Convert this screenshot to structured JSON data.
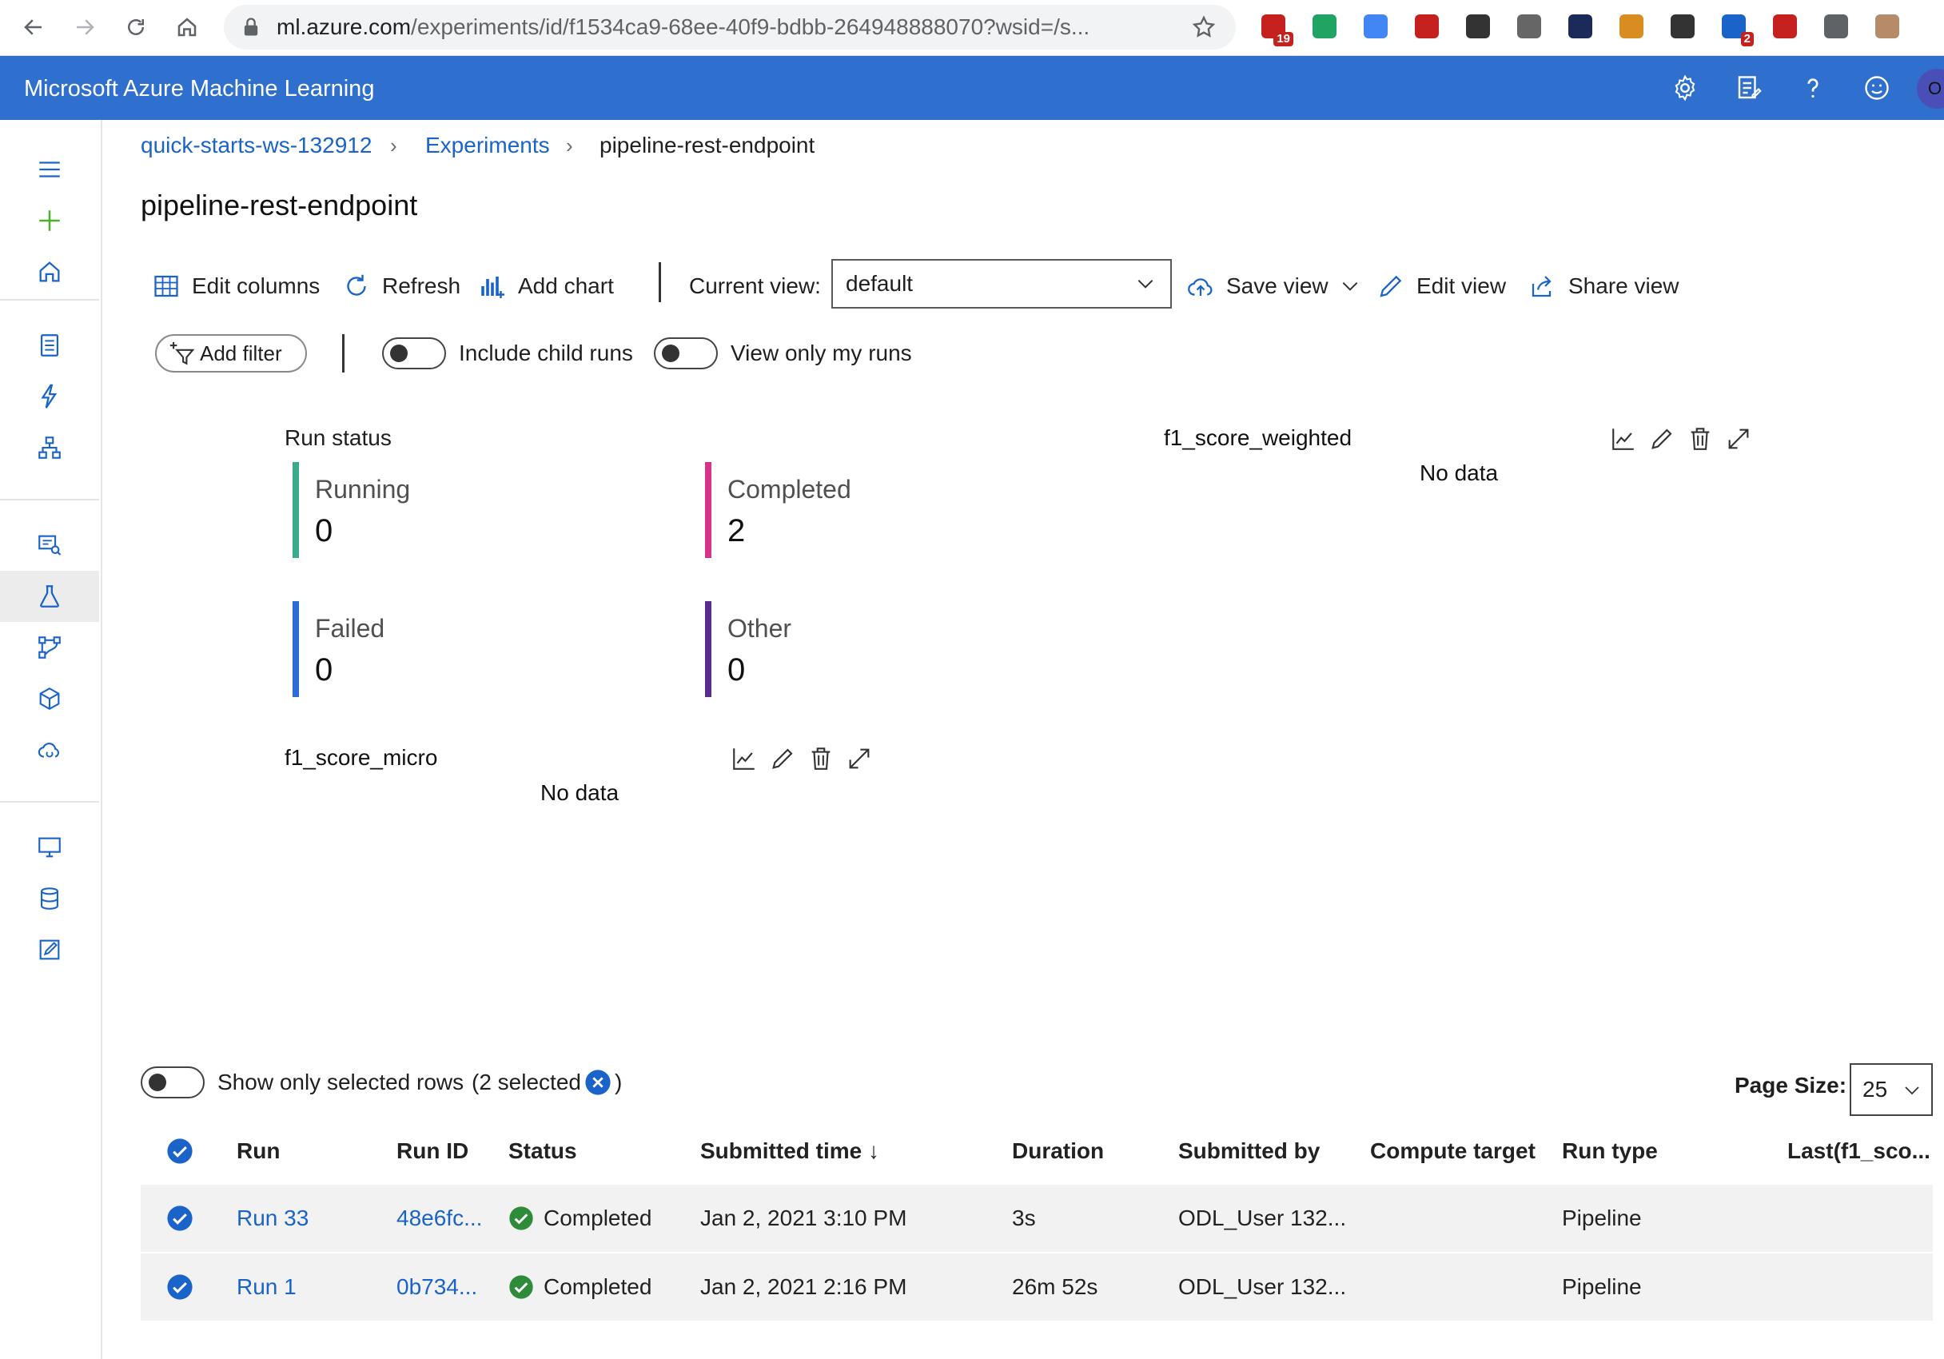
{
  "browser": {
    "url_host": "ml.azure.com",
    "url_path": "/experiments/id/f1534ca9-68ee-40f9-bdbb-264948888070?wsid=/s...",
    "extensions": [
      {
        "name": "gmail-icon",
        "badge": "19",
        "color": "#c5221f"
      },
      {
        "name": "google-drive-icon",
        "badge": "",
        "color": "#1fa463"
      },
      {
        "name": "translate-icon",
        "badge": "",
        "color": "#4285f4"
      },
      {
        "name": "bookmark-ext-icon",
        "badge": "",
        "color": "#c5221f"
      },
      {
        "name": "info-ext-icon",
        "badge": "",
        "color": "#333333"
      },
      {
        "name": "circle-ext-icon",
        "badge": "",
        "color": "#666666"
      },
      {
        "name": "ip-ext-icon",
        "badge": "",
        "color": "#1c2a5a"
      },
      {
        "name": "txt-ext-icon",
        "badge": "",
        "color": "#d98c1f"
      },
      {
        "name": "speed-ext-icon",
        "badge": "",
        "color": "#333333"
      },
      {
        "name": "drop-ext-icon",
        "badge": "2",
        "color": "#1a63c8"
      },
      {
        "name": "mendeley-ext-icon",
        "badge": "",
        "color": "#c5221f"
      },
      {
        "name": "puzzle-icon",
        "badge": "",
        "color": "#5f6368"
      },
      {
        "name": "profile-avatar-icon",
        "badge": "",
        "color": "#b58b6a"
      }
    ]
  },
  "header": {
    "title": "Microsoft Azure Machine Learning",
    "avatar_initial": "O",
    "brand_color": "#2f6fcd"
  },
  "breadcrumb": {
    "workspace": "quick-starts-ws-132912",
    "section": "Experiments",
    "current": "pipeline-rest-endpoint"
  },
  "page": {
    "title": "pipeline-rest-endpoint"
  },
  "toolbar": {
    "edit_columns": "Edit columns",
    "refresh": "Refresh",
    "add_chart": "Add chart",
    "current_view_label": "Current view:",
    "current_view_value": "default",
    "save_view": "Save view",
    "edit_view": "Edit view",
    "share_view": "Share view"
  },
  "filters": {
    "add_filter": "Add filter",
    "include_child_runs": "Include child runs",
    "include_child_runs_on": false,
    "view_only_my_runs": "View only my runs",
    "view_only_my_runs_on": false
  },
  "run_status": {
    "title": "Run status",
    "tiles": [
      {
        "label": "Running",
        "value": "0",
        "color": "#3aaa8c"
      },
      {
        "label": "Completed",
        "value": "2",
        "color": "#d6338a"
      },
      {
        "label": "Failed",
        "value": "0",
        "color": "#2b6bd6"
      },
      {
        "label": "Other",
        "value": "0",
        "color": "#5b2b91"
      }
    ]
  },
  "charts": [
    {
      "title": "f1_score_weighted",
      "empty_text": "No data"
    },
    {
      "title": "f1_score_micro",
      "empty_text": "No data"
    }
  ],
  "selection": {
    "show_only_selected": "Show only selected rows",
    "show_only_selected_on": false,
    "selected_prefix": "(2 selected",
    "selected_suffix": ")"
  },
  "pagination": {
    "label": "Page Size:",
    "value": "25"
  },
  "table": {
    "columns": [
      "Run",
      "Run ID",
      "Status",
      "Submitted time ↓",
      "Duration",
      "Submitted by",
      "Compute target",
      "Run type",
      "Last(f1_sco..."
    ],
    "rows": [
      {
        "run": "Run 33",
        "run_id": "48e6fc...",
        "status": "Completed",
        "submitted": "Jan 2, 2021 3:10 PM",
        "duration": "3s",
        "submitted_by": "ODL_User 132...",
        "compute_target": "",
        "run_type": "Pipeline",
        "last": ""
      },
      {
        "run": "Run 1",
        "run_id": "0b734...",
        "status": "Completed",
        "submitted": "Jan 2, 2021 2:16 PM",
        "duration": "26m 52s",
        "submitted_by": "ODL_User 132...",
        "compute_target": "",
        "run_type": "Pipeline",
        "last": ""
      }
    ]
  },
  "colors": {
    "link": "#1a63c8",
    "success": "#2e8b3a",
    "check": "#1a63c8"
  }
}
